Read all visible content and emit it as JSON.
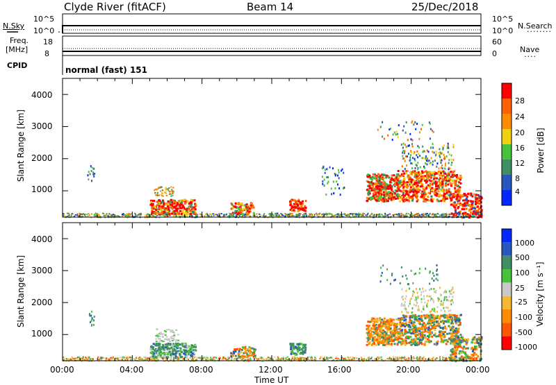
{
  "header": {
    "station": "Clyde River (fitACF)",
    "beam": "Beam 14",
    "date": "25/Dec/2018"
  },
  "strip": {
    "nsky_label": "N.Sky",
    "nsky_max": "10^5",
    "nsky_min": "10^0",
    "nsearch_label": "N.Search",
    "nsearch_max": "10^5",
    "nsearch_min": "10^0",
    "freq_label_1": "Freq.",
    "freq_label_2": "[MHz]",
    "freq_max": "18",
    "freq_min": "8",
    "nave_label": "Nave",
    "nave_max": "60",
    "nave_min": "0",
    "cpid_label": "CPID",
    "cpid_value": "normal (fast) 151"
  },
  "colors": {
    "power": [
      "#0028ff",
      "#2a56c0",
      "#3f8f63",
      "#46c23c",
      "#f0d010",
      "#ff8c00",
      "#ff6000",
      "#ff0000"
    ],
    "velocity": [
      "#ff0000",
      "#ff5500",
      "#ff8c00",
      "#f5b830",
      "#c8c8c8",
      "#46c23c",
      "#3f8f63",
      "#2a56c0",
      "#0028ff"
    ]
  },
  "chart_data": [
    {
      "type": "heatmap",
      "name": "power",
      "ylabel": "Slant Range [km]",
      "xlabel": "",
      "xlim": [
        "00:00",
        "00:00"
      ],
      "ylim": [
        180,
        4500
      ],
      "y_ticks": [
        "1000",
        "2000",
        "3000",
        "4000"
      ],
      "colorbar_label": "Power [dB]",
      "colorbar_ticks": [
        "4",
        "8",
        "12",
        "16",
        "20",
        "24",
        "28"
      ],
      "blobs": [
        {
          "t": [
            5.0,
            7.5
          ],
          "r": [
            300,
            700
          ],
          "level": "high"
        },
        {
          "t": [
            9.5,
            11.0
          ],
          "r": [
            300,
            600
          ],
          "level": "mid"
        },
        {
          "t": [
            13.0,
            13.8
          ],
          "r": [
            400,
            700
          ],
          "level": "high"
        },
        {
          "t": [
            17.5,
            19.0
          ],
          "r": [
            700,
            1500
          ],
          "level": "high"
        },
        {
          "t": [
            19.5,
            22.5
          ],
          "r": [
            700,
            1600
          ],
          "level": "high"
        },
        {
          "t": [
            22.5,
            24.0
          ],
          "r": [
            200,
            900
          ],
          "level": "high"
        }
      ]
    },
    {
      "type": "heatmap",
      "name": "velocity",
      "ylabel": "Slant Range [km]",
      "xlabel": "Time UT",
      "x_ticks": [
        "00:00",
        "04:00",
        "08:00",
        "12:00",
        "16:00",
        "20:00",
        "00:00"
      ],
      "ylim": [
        180,
        4500
      ],
      "y_ticks": [
        "1000",
        "2000",
        "3000",
        "4000"
      ],
      "colorbar_label": "Velocity [m s⁻¹]",
      "colorbar_ticks": [
        "1000",
        "500",
        "100",
        "25",
        "-25",
        "-100",
        "-500",
        "-1000"
      ]
    }
  ]
}
